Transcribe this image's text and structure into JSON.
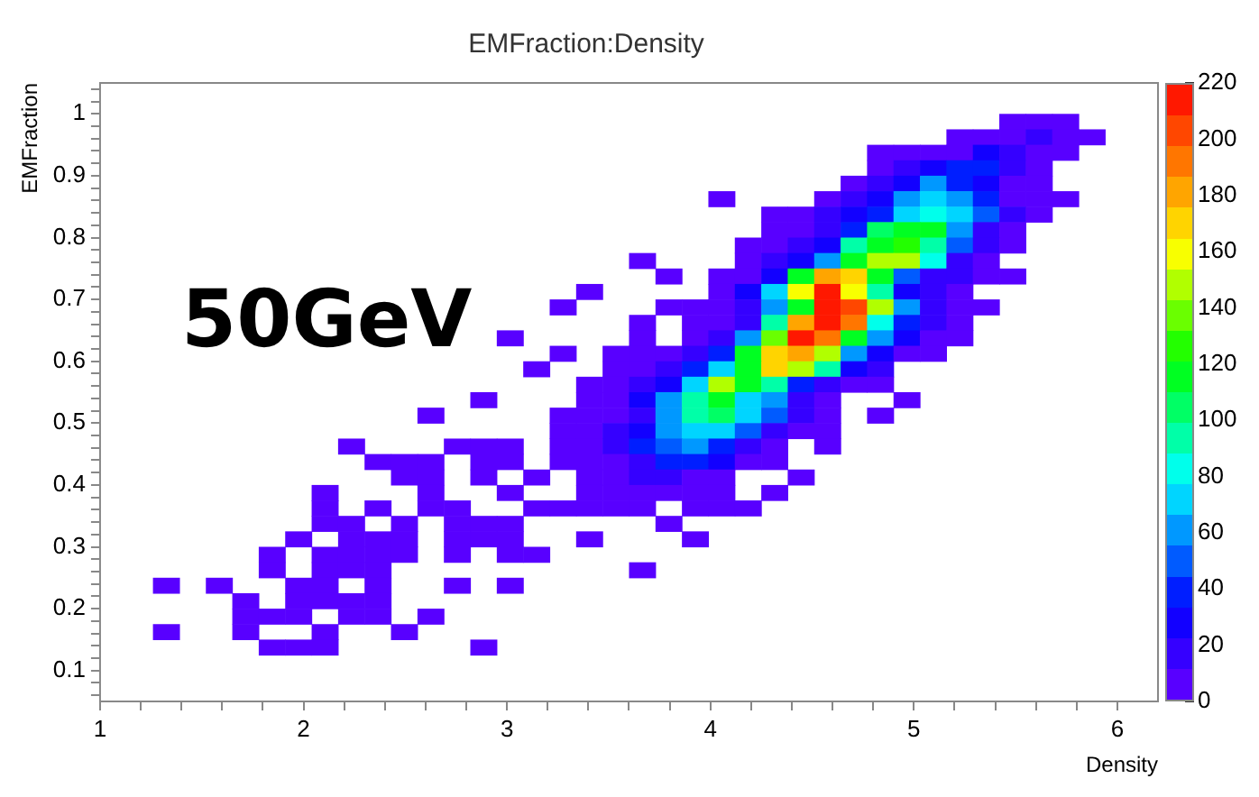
{
  "chart_data": {
    "type": "heatmap",
    "title": "EMFraction:Density",
    "xlabel": "Density",
    "ylabel": "EMFraction",
    "annotations": [
      "50GeV"
    ],
    "xlim": [
      1,
      6.2
    ],
    "ylim": [
      0.05,
      1.05
    ],
    "xticks": [
      1,
      {
        "value": 1.2,
        "label": null
      },
      {
        "value": 1.4,
        "label": null
      },
      {
        "value": 1.6,
        "label": null
      },
      {
        "value": 1.8,
        "label": null
      },
      2,
      {
        "value": 2.2,
        "label": null
      },
      {
        "value": 2.4,
        "label": null
      },
      {
        "value": 2.6,
        "label": null
      },
      {
        "value": 2.8,
        "label": null
      },
      3,
      {
        "value": 3.2,
        "label": null
      },
      {
        "value": 3.4,
        "label": null
      },
      {
        "value": 3.6,
        "label": null
      },
      {
        "value": 3.8,
        "label": null
      },
      4,
      {
        "value": 4.2,
        "label": null
      },
      {
        "value": 4.4,
        "label": null
      },
      {
        "value": 4.6,
        "label": null
      },
      {
        "value": 4.8,
        "label": null
      },
      5,
      {
        "value": 5.2,
        "label": null
      },
      {
        "value": 5.4,
        "label": null
      },
      {
        "value": 5.6,
        "label": null
      },
      {
        "value": 5.8,
        "label": null
      },
      6
    ],
    "yticks": [
      {
        "value": 0.06,
        "label": null
      },
      {
        "value": 0.08,
        "label": null
      },
      0.1,
      {
        "value": 0.12,
        "label": null
      },
      {
        "value": 0.14,
        "label": null
      },
      {
        "value": 0.16,
        "label": null
      },
      {
        "value": 0.18,
        "label": null
      },
      0.2,
      {
        "value": 0.22,
        "label": null
      },
      {
        "value": 0.24,
        "label": null
      },
      {
        "value": 0.26,
        "label": null
      },
      {
        "value": 0.28,
        "label": null
      },
      0.3,
      {
        "value": 0.32,
        "label": null
      },
      {
        "value": 0.34,
        "label": null
      },
      {
        "value": 0.36,
        "label": null
      },
      {
        "value": 0.38,
        "label": null
      },
      0.4,
      {
        "value": 0.42,
        "label": null
      },
      {
        "value": 0.44,
        "label": null
      },
      {
        "value": 0.46,
        "label": null
      },
      {
        "value": 0.48,
        "label": null
      },
      0.5,
      {
        "value": 0.52,
        "label": null
      },
      {
        "value": 0.54,
        "label": null
      },
      {
        "value": 0.56,
        "label": null
      },
      {
        "value": 0.58,
        "label": null
      },
      0.6,
      {
        "value": 0.62,
        "label": null
      },
      {
        "value": 0.64,
        "label": null
      },
      {
        "value": 0.66,
        "label": null
      },
      {
        "value": 0.68,
        "label": null
      },
      0.7,
      {
        "value": 0.72,
        "label": null
      },
      {
        "value": 0.74,
        "label": null
      },
      {
        "value": 0.76,
        "label": null
      },
      {
        "value": 0.78,
        "label": null
      },
      0.8,
      {
        "value": 0.82,
        "label": null
      },
      {
        "value": 0.84,
        "label": null
      },
      {
        "value": 0.86,
        "label": null
      },
      {
        "value": 0.88,
        "label": null
      },
      0.9,
      {
        "value": 0.92,
        "label": null
      },
      {
        "value": 0.94,
        "label": null
      },
      {
        "value": 0.96,
        "label": null
      },
      {
        "value": 0.98,
        "label": null
      },
      1,
      {
        "value": 1.02,
        "label": null
      },
      {
        "value": 1.04,
        "label": null
      }
    ],
    "clim": [
      0,
      220
    ],
    "cticks": [
      0,
      20,
      40,
      60,
      80,
      100,
      120,
      140,
      160,
      180,
      200,
      220
    ],
    "x": [
      1.325,
      1.455,
      1.585,
      1.715,
      1.845,
      1.975,
      2.105,
      2.235,
      2.365,
      2.495,
      2.625,
      2.755,
      2.885,
      3.015,
      3.145,
      3.275,
      3.405,
      3.535,
      3.665,
      3.795,
      3.925,
      4.055,
      4.185,
      4.315,
      4.445,
      4.575,
      4.705,
      4.835,
      4.965,
      5.095,
      5.225,
      5.355,
      5.485,
      5.615,
      5.745,
      5.875
    ],
    "y": [
      0.9875,
      0.9625,
      0.9375,
      0.9125,
      0.8875,
      0.8625,
      0.8375,
      0.8125,
      0.7875,
      0.7625,
      0.7375,
      0.7125,
      0.6875,
      0.6625,
      0.6375,
      0.6125,
      0.5875,
      0.5625,
      0.5375,
      0.5125,
      0.4875,
      0.4625,
      0.4375,
      0.4125,
      0.3875,
      0.3625,
      0.3375,
      0.3125,
      0.2875,
      0.2625,
      0.2375,
      0.2125,
      0.1875,
      0.1625,
      0.1375
    ],
    "cells": [
      [
        null,
        null,
        null,
        null,
        null,
        null,
        null,
        null,
        null,
        null,
        null,
        null,
        null,
        null,
        null,
        null,
        null,
        null,
        null,
        null,
        null,
        null,
        null,
        null,
        null,
        null,
        null,
        null,
        null,
        null,
        null,
        null,
        5,
        5,
        5,
        null
      ],
      [
        null,
        null,
        null,
        null,
        null,
        null,
        null,
        null,
        null,
        null,
        null,
        null,
        null,
        null,
        null,
        null,
        null,
        null,
        null,
        null,
        null,
        null,
        null,
        null,
        null,
        null,
        null,
        null,
        null,
        null,
        5,
        5,
        5,
        20,
        5,
        5
      ],
      [
        null,
        null,
        null,
        null,
        null,
        null,
        null,
        null,
        null,
        null,
        null,
        null,
        null,
        null,
        null,
        null,
        null,
        null,
        null,
        null,
        null,
        null,
        null,
        null,
        null,
        null,
        null,
        5,
        5,
        5,
        5,
        25,
        15,
        5,
        5,
        null
      ],
      [
        null,
        null,
        null,
        null,
        null,
        null,
        null,
        null,
        null,
        null,
        null,
        null,
        null,
        null,
        null,
        null,
        null,
        null,
        null,
        null,
        null,
        null,
        null,
        null,
        null,
        null,
        null,
        5,
        15,
        30,
        40,
        35,
        15,
        5,
        null,
        null
      ],
      [
        null,
        null,
        null,
        null,
        null,
        null,
        null,
        null,
        null,
        null,
        null,
        null,
        null,
        null,
        null,
        null,
        null,
        null,
        null,
        null,
        null,
        null,
        null,
        null,
        null,
        null,
        5,
        15,
        30,
        55,
        40,
        30,
        5,
        5,
        null,
        null
      ],
      [
        null,
        null,
        null,
        null,
        null,
        null,
        null,
        null,
        null,
        null,
        null,
        null,
        null,
        null,
        null,
        null,
        null,
        null,
        null,
        null,
        null,
        5,
        null,
        null,
        null,
        5,
        15,
        30,
        55,
        75,
        60,
        35,
        5,
        5,
        5,
        null
      ],
      [
        null,
        null,
        null,
        null,
        null,
        null,
        null,
        null,
        null,
        null,
        null,
        null,
        null,
        null,
        null,
        null,
        null,
        null,
        null,
        null,
        null,
        null,
        null,
        5,
        5,
        15,
        30,
        40,
        70,
        85,
        75,
        45,
        15,
        5,
        null,
        null
      ],
      [
        null,
        null,
        null,
        null,
        null,
        null,
        null,
        null,
        null,
        null,
        null,
        null,
        null,
        null,
        null,
        null,
        null,
        null,
        null,
        null,
        null,
        null,
        null,
        5,
        5,
        15,
        40,
        105,
        110,
        120,
        60,
        15,
        5,
        null,
        null,
        null
      ],
      [
        null,
        null,
        null,
        null,
        null,
        null,
        null,
        null,
        null,
        null,
        null,
        null,
        null,
        null,
        null,
        null,
        null,
        null,
        null,
        null,
        null,
        null,
        5,
        5,
        15,
        30,
        90,
        110,
        125,
        95,
        50,
        15,
        5,
        null,
        null,
        null
      ],
      [
        null,
        null,
        null,
        null,
        null,
        null,
        null,
        null,
        null,
        null,
        null,
        null,
        null,
        null,
        null,
        null,
        null,
        null,
        5,
        null,
        null,
        null,
        5,
        15,
        30,
        55,
        115,
        145,
        145,
        85,
        15,
        5,
        null,
        null,
        null,
        null
      ],
      [
        null,
        null,
        null,
        null,
        null,
        null,
        null,
        null,
        null,
        null,
        null,
        null,
        null,
        null,
        null,
        null,
        null,
        null,
        null,
        5,
        null,
        5,
        5,
        25,
        110,
        185,
        170,
        120,
        50,
        15,
        15,
        5,
        5,
        null,
        null,
        null
      ],
      [
        null,
        null,
        null,
        null,
        null,
        null,
        null,
        null,
        null,
        null,
        null,
        null,
        null,
        null,
        null,
        null,
        5,
        null,
        null,
        null,
        null,
        5,
        25,
        70,
        160,
        220,
        160,
        95,
        30,
        15,
        5,
        null,
        null,
        null,
        null,
        null
      ],
      [
        null,
        null,
        null,
        null,
        null,
        null,
        null,
        null,
        null,
        null,
        null,
        null,
        null,
        null,
        null,
        5,
        null,
        null,
        null,
        5,
        5,
        5,
        20,
        60,
        115,
        215,
        205,
        150,
        60,
        15,
        5,
        5,
        null,
        null,
        null,
        null
      ],
      [
        null,
        null,
        null,
        null,
        null,
        null,
        null,
        null,
        null,
        null,
        null,
        null,
        null,
        null,
        null,
        null,
        null,
        null,
        5,
        null,
        5,
        5,
        15,
        90,
        185,
        220,
        195,
        80,
        35,
        15,
        5,
        null,
        null,
        null,
        null,
        null
      ],
      [
        null,
        null,
        null,
        null,
        null,
        null,
        null,
        null,
        null,
        null,
        null,
        null,
        null,
        5,
        null,
        null,
        null,
        null,
        5,
        null,
        5,
        15,
        60,
        140,
        215,
        195,
        120,
        60,
        25,
        5,
        5,
        null,
        null,
        null,
        null,
        null
      ],
      [
        null,
        null,
        null,
        null,
        null,
        null,
        null,
        null,
        null,
        null,
        null,
        null,
        null,
        null,
        null,
        5,
        null,
        5,
        5,
        5,
        15,
        40,
        110,
        170,
        180,
        145,
        60,
        30,
        5,
        5,
        null,
        null,
        null,
        null,
        null,
        null
      ],
      [
        null,
        null,
        null,
        null,
        null,
        null,
        null,
        null,
        null,
        null,
        null,
        null,
        null,
        null,
        5,
        null,
        null,
        5,
        5,
        15,
        35,
        75,
        120,
        165,
        145,
        90,
        30,
        15,
        null,
        null,
        null,
        null,
        null,
        null,
        null,
        null
      ],
      [
        null,
        null,
        null,
        null,
        null,
        null,
        null,
        null,
        null,
        null,
        null,
        null,
        null,
        null,
        null,
        null,
        5,
        5,
        15,
        30,
        75,
        145,
        120,
        95,
        40,
        20,
        5,
        5,
        null,
        null,
        null,
        null,
        null,
        null,
        null,
        null
      ],
      [
        null,
        null,
        null,
        null,
        null,
        null,
        null,
        null,
        null,
        null,
        null,
        null,
        5,
        null,
        null,
        null,
        5,
        5,
        25,
        55,
        90,
        110,
        75,
        55,
        20,
        5,
        null,
        null,
        5,
        null,
        null,
        null,
        null,
        null,
        null,
        null
      ],
      [
        null,
        null,
        null,
        null,
        null,
        null,
        null,
        null,
        null,
        null,
        5,
        null,
        null,
        null,
        null,
        5,
        5,
        5,
        20,
        55,
        95,
        105,
        75,
        45,
        20,
        5,
        null,
        5,
        null,
        null,
        null,
        null,
        null,
        null,
        null,
        null
      ],
      [
        null,
        null,
        null,
        null,
        null,
        null,
        null,
        null,
        null,
        null,
        null,
        null,
        null,
        null,
        null,
        5,
        5,
        15,
        30,
        60,
        75,
        75,
        45,
        20,
        5,
        5,
        null,
        null,
        null,
        null,
        null,
        null,
        null,
        null,
        null,
        null
      ],
      [
        null,
        null,
        null,
        null,
        null,
        null,
        null,
        5,
        null,
        null,
        null,
        5,
        5,
        5,
        null,
        5,
        5,
        15,
        35,
        45,
        55,
        40,
        20,
        5,
        null,
        5,
        null,
        null,
        null,
        null,
        null,
        null,
        null,
        null,
        null,
        null
      ],
      [
        null,
        null,
        null,
        null,
        null,
        null,
        null,
        null,
        5,
        5,
        5,
        null,
        5,
        5,
        null,
        5,
        5,
        5,
        15,
        35,
        35,
        25,
        5,
        5,
        null,
        null,
        null,
        null,
        null,
        null,
        null,
        null,
        null,
        null,
        null,
        null
      ],
      [
        null,
        null,
        null,
        null,
        null,
        null,
        null,
        null,
        null,
        5,
        5,
        null,
        5,
        null,
        5,
        null,
        5,
        5,
        15,
        15,
        5,
        5,
        null,
        null,
        5,
        null,
        null,
        null,
        null,
        null,
        null,
        null,
        null,
        null,
        null,
        null
      ],
      [
        null,
        null,
        null,
        null,
        null,
        null,
        5,
        null,
        null,
        null,
        5,
        null,
        null,
        5,
        null,
        null,
        5,
        5,
        5,
        5,
        5,
        5,
        null,
        5,
        null,
        null,
        null,
        null,
        null,
        null,
        null,
        null,
        null,
        null,
        null,
        null
      ],
      [
        null,
        null,
        null,
        null,
        null,
        null,
        5,
        null,
        5,
        null,
        5,
        5,
        null,
        null,
        5,
        5,
        5,
        5,
        5,
        null,
        5,
        5,
        5,
        null,
        null,
        null,
        null,
        null,
        null,
        null,
        null,
        null,
        null,
        null,
        null,
        null
      ],
      [
        null,
        null,
        null,
        null,
        null,
        null,
        5,
        5,
        null,
        5,
        null,
        5,
        5,
        5,
        null,
        null,
        null,
        null,
        null,
        5,
        null,
        null,
        null,
        null,
        null,
        null,
        null,
        null,
        null,
        null,
        null,
        null,
        null,
        null,
        null,
        null
      ],
      [
        null,
        null,
        null,
        null,
        null,
        5,
        null,
        5,
        5,
        5,
        null,
        5,
        5,
        5,
        null,
        null,
        5,
        null,
        null,
        null,
        5,
        null,
        null,
        null,
        null,
        null,
        null,
        null,
        null,
        null,
        null,
        null,
        null,
        null,
        null,
        null
      ],
      [
        null,
        null,
        null,
        null,
        5,
        null,
        5,
        5,
        5,
        5,
        null,
        5,
        null,
        5,
        5,
        null,
        null,
        null,
        null,
        null,
        null,
        null,
        null,
        null,
        null,
        null,
        null,
        null,
        null,
        null,
        null,
        null,
        null,
        null,
        null,
        null
      ],
      [
        null,
        null,
        null,
        null,
        5,
        null,
        5,
        5,
        5,
        null,
        null,
        null,
        null,
        null,
        null,
        null,
        null,
        null,
        5,
        null,
        null,
        null,
        null,
        null,
        null,
        null,
        null,
        null,
        null,
        null,
        null,
        null,
        null,
        null,
        null,
        null
      ],
      [
        5,
        null,
        5,
        null,
        null,
        5,
        5,
        null,
        5,
        null,
        null,
        5,
        null,
        5,
        null,
        null,
        null,
        null,
        null,
        null,
        null,
        null,
        null,
        null,
        null,
        null,
        null,
        null,
        null,
        null,
        null,
        null,
        null,
        null,
        null,
        null
      ],
      [
        null,
        null,
        null,
        5,
        null,
        5,
        5,
        5,
        5,
        null,
        null,
        null,
        null,
        null,
        null,
        null,
        null,
        null,
        null,
        null,
        null,
        null,
        null,
        null,
        null,
        null,
        null,
        null,
        null,
        null,
        null,
        null,
        null,
        null,
        null,
        null
      ],
      [
        null,
        null,
        null,
        5,
        5,
        5,
        null,
        5,
        5,
        null,
        5,
        null,
        null,
        null,
        null,
        null,
        null,
        null,
        null,
        null,
        null,
        null,
        null,
        null,
        null,
        null,
        null,
        null,
        null,
        null,
        null,
        null,
        null,
        null,
        null,
        null
      ],
      [
        5,
        null,
        null,
        5,
        null,
        null,
        5,
        null,
        null,
        5,
        null,
        null,
        null,
        null,
        null,
        null,
        null,
        null,
        null,
        null,
        null,
        null,
        null,
        null,
        null,
        null,
        null,
        null,
        null,
        null,
        null,
        null,
        null,
        null,
        null,
        null
      ],
      [
        null,
        null,
        null,
        null,
        5,
        5,
        5,
        null,
        null,
        null,
        null,
        null,
        5,
        null,
        null,
        null,
        null,
        null,
        null,
        null,
        null,
        null,
        null,
        null,
        null,
        null,
        null,
        null,
        null,
        null,
        null,
        null,
        null,
        null,
        null,
        null
      ]
    ]
  }
}
